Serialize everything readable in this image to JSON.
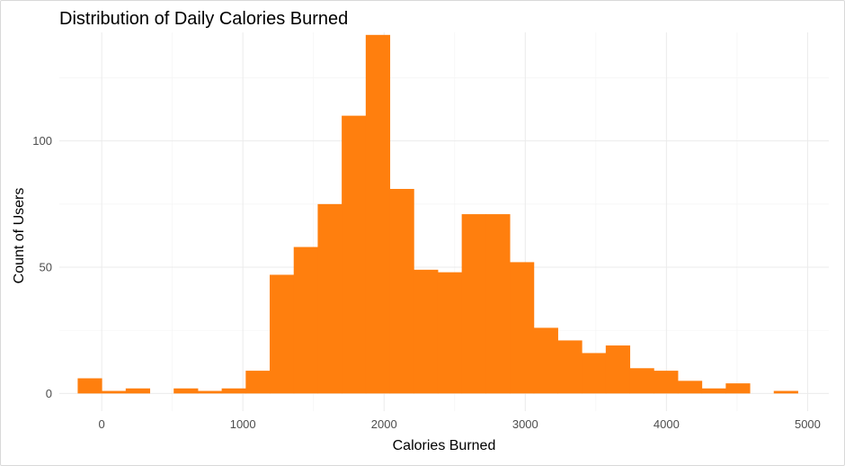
{
  "chart_data": {
    "type": "bar",
    "title": "Distribution of Daily Calories Burned",
    "xlabel": "Calories Burned",
    "ylabel": "Count of Users",
    "bar_color": "#ff7f0e",
    "grid": true,
    "xlim": [
      -300,
      5150
    ],
    "ylim": [
      -7,
      143
    ],
    "x_ticks": [
      0,
      1000,
      2000,
      3000,
      4000,
      5000
    ],
    "y_ticks": [
      0,
      50,
      100
    ],
    "bin_width": 170,
    "bins": [
      {
        "x": -85,
        "count": 6
      },
      {
        "x": 85,
        "count": 1
      },
      {
        "x": 255,
        "count": 2
      },
      {
        "x": 425,
        "count": 0
      },
      {
        "x": 595,
        "count": 2
      },
      {
        "x": 765,
        "count": 1
      },
      {
        "x": 935,
        "count": 2
      },
      {
        "x": 1105,
        "count": 9
      },
      {
        "x": 1275,
        "count": 47
      },
      {
        "x": 1445,
        "count": 58
      },
      {
        "x": 1615,
        "count": 75
      },
      {
        "x": 1785,
        "count": 110
      },
      {
        "x": 1955,
        "count": 142
      },
      {
        "x": 2125,
        "count": 81
      },
      {
        "x": 2295,
        "count": 49
      },
      {
        "x": 2465,
        "count": 48
      },
      {
        "x": 2635,
        "count": 71
      },
      {
        "x": 2805,
        "count": 71
      },
      {
        "x": 2975,
        "count": 52
      },
      {
        "x": 3145,
        "count": 26
      },
      {
        "x": 3315,
        "count": 21
      },
      {
        "x": 3485,
        "count": 16
      },
      {
        "x": 3655,
        "count": 19
      },
      {
        "x": 3825,
        "count": 10
      },
      {
        "x": 3995,
        "count": 9
      },
      {
        "x": 4165,
        "count": 5
      },
      {
        "x": 4335,
        "count": 2
      },
      {
        "x": 4505,
        "count": 4
      },
      {
        "x": 4675,
        "count": 0
      },
      {
        "x": 4845,
        "count": 1
      }
    ]
  }
}
